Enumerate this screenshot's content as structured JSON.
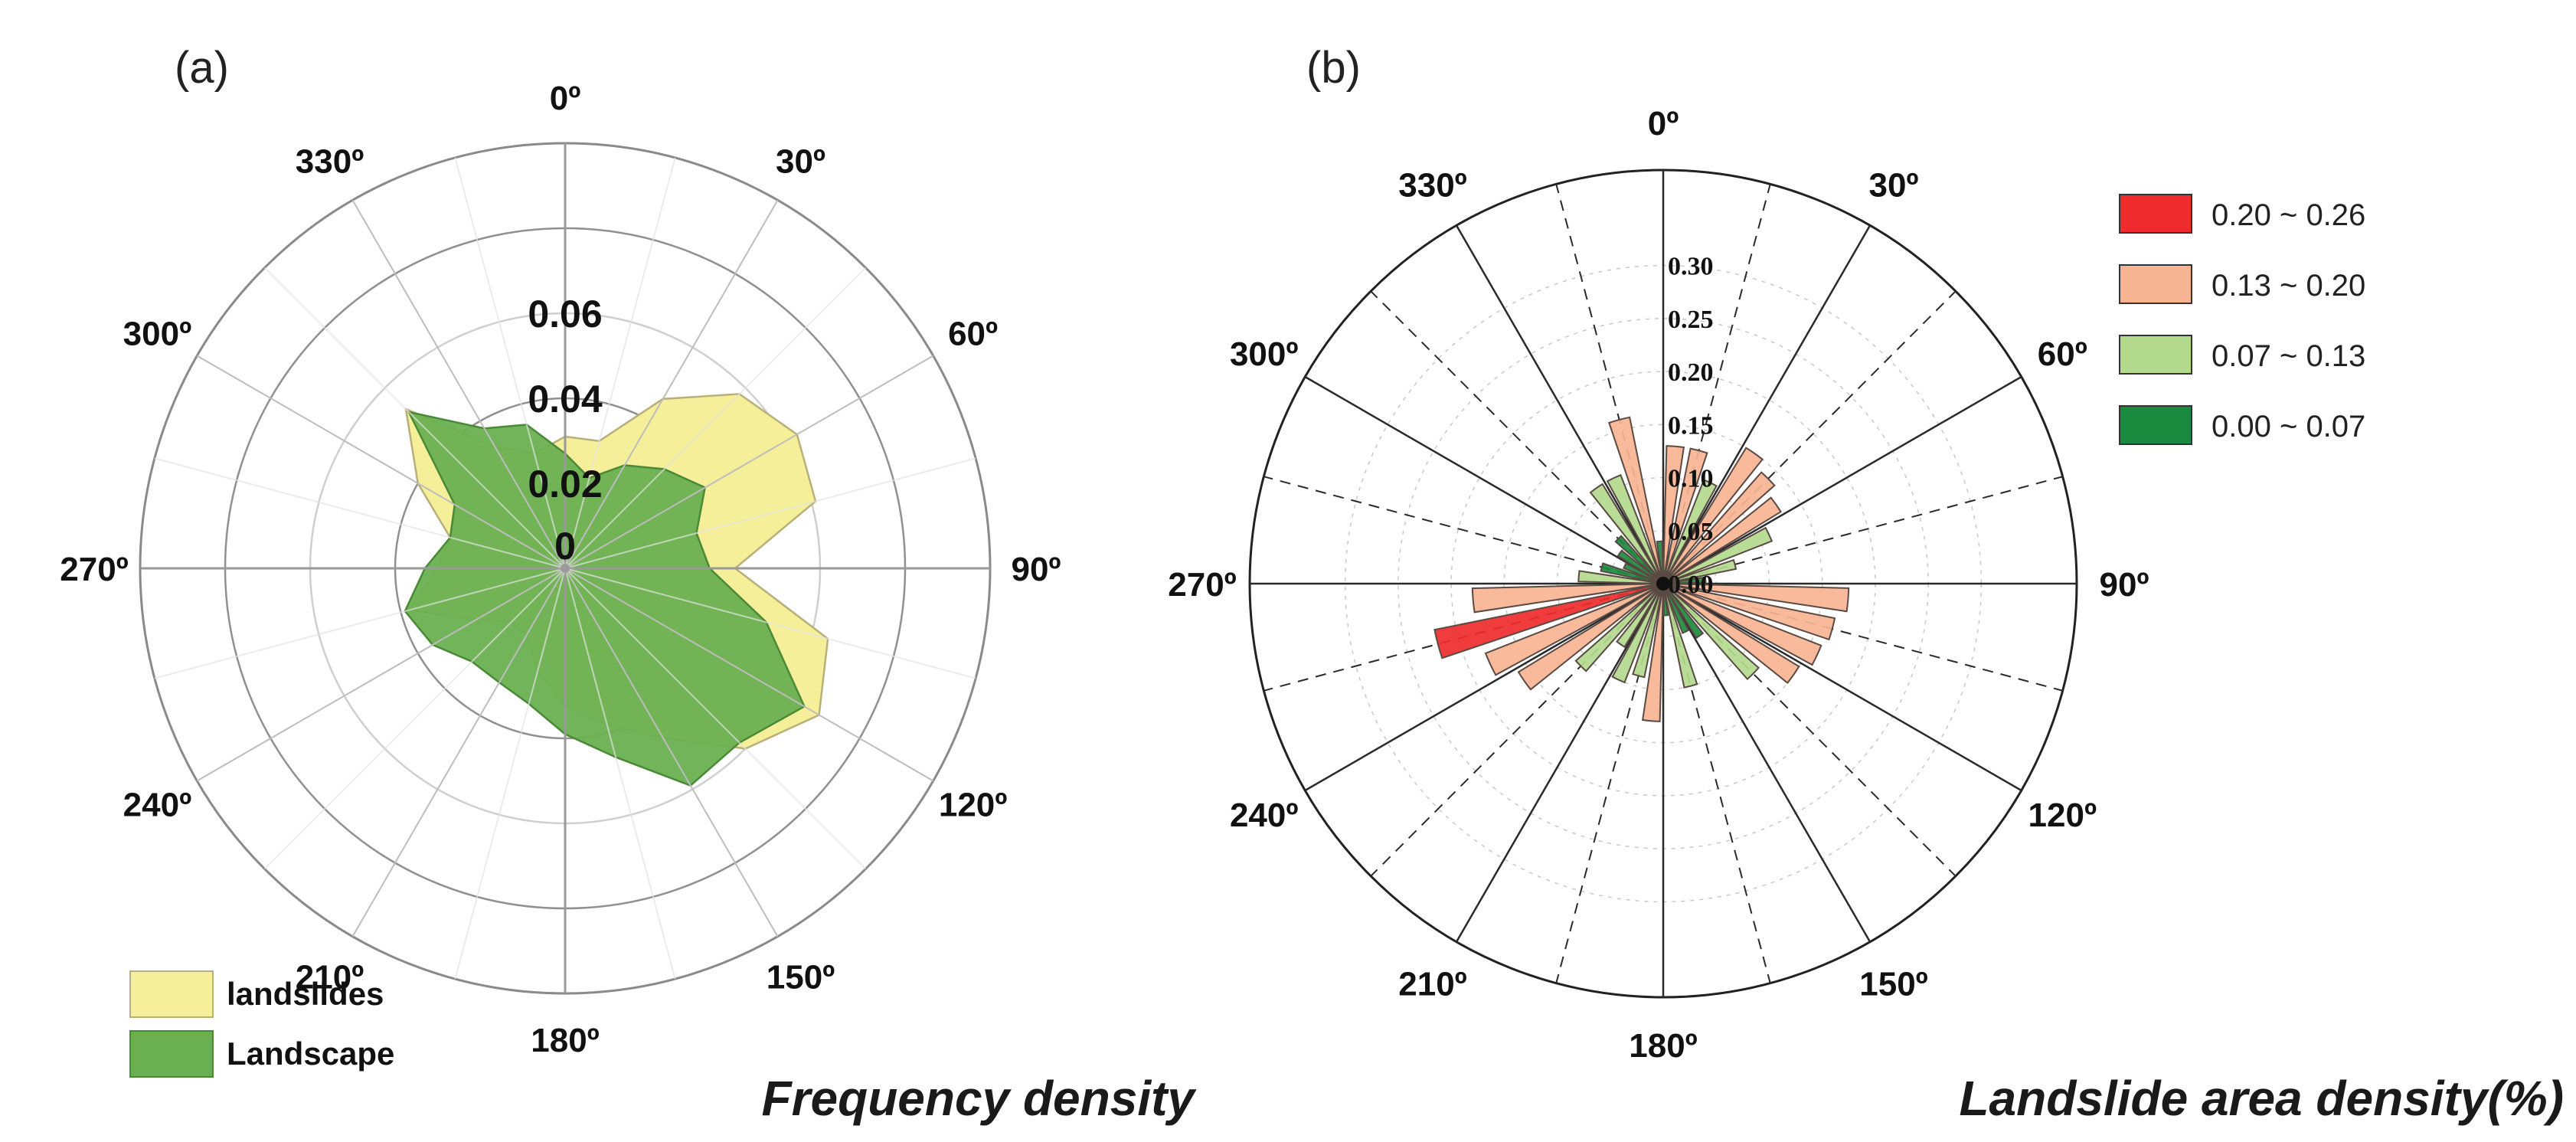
{
  "chart_data": [
    {
      "type": "radar",
      "panel_label": "(a)",
      "caption": "Frequency density",
      "directions": [
        "0º",
        "30º",
        "60º",
        "90º",
        "120º",
        "150º",
        "180º",
        "210º",
        "240º",
        "270º",
        "300º",
        "330º"
      ],
      "radial_ticks": [
        "0",
        "0.02",
        "0.04",
        "0.06"
      ],
      "rlim": [
        0,
        0.1
      ],
      "angles": [
        0,
        15,
        30,
        45,
        60,
        75,
        90,
        105,
        120,
        135,
        150,
        165,
        180,
        195,
        210,
        225,
        240,
        255,
        270,
        285,
        300,
        315,
        330,
        345
      ],
      "series": [
        {
          "name": "landslides",
          "color": "#f6ef9a",
          "stroke": "#b7b07a",
          "values": [
            0.031,
            0.031,
            0.046,
            0.058,
            0.063,
            0.061,
            0.04,
            0.064,
            0.069,
            0.06,
            0.046,
            0.038,
            0.032,
            0.025,
            0.018,
            0.018,
            0.024,
            0.038,
            0.03,
            0.028,
            0.04,
            0.053,
            0.033,
            0.028
          ]
        },
        {
          "name": "Landscape",
          "color": "#6ab051",
          "stroke": "#4a8a37",
          "values": [
            0.027,
            0.022,
            0.028,
            0.033,
            0.038,
            0.032,
            0.034,
            0.049,
            0.065,
            0.058,
            0.059,
            0.046,
            0.039,
            0.033,
            0.031,
            0.031,
            0.036,
            0.039,
            0.033,
            0.028,
            0.03,
            0.052,
            0.038,
            0.035
          ]
        }
      ]
    },
    {
      "type": "polar_bar",
      "panel_label": "(b)",
      "caption": "Landslide area density(%)",
      "directions": [
        "0º",
        "30º",
        "60º",
        "90º",
        "120º",
        "150º",
        "180º",
        "210º",
        "240º",
        "270º",
        "300º",
        "330º"
      ],
      "radial_ticks": [
        "0.00",
        "0.05",
        "0.10",
        "0.15",
        "0.20",
        "0.25",
        "0.30"
      ],
      "rlim": [
        0,
        0.39
      ],
      "bin_width_deg": 10,
      "angles": [
        5,
        15,
        25,
        35,
        45,
        55,
        65,
        75,
        85,
        95,
        105,
        115,
        125,
        135,
        145,
        155,
        165,
        175,
        185,
        195,
        205,
        215,
        225,
        235,
        245,
        255,
        265,
        275,
        285,
        295,
        305,
        315,
        325,
        335,
        345,
        355
      ],
      "values": [
        0.13,
        0.13,
        0.105,
        0.15,
        0.14,
        0.13,
        0.11,
        0.07,
        0.04,
        0.175,
        0.165,
        0.16,
        0.15,
        0.12,
        0.06,
        0.05,
        0.1,
        0.03,
        0.13,
        0.09,
        0.1,
        0.07,
        0.11,
        0.16,
        0.18,
        0.22,
        0.18,
        0.08,
        0.06,
        0.04,
        0.05,
        0.06,
        0.11,
        0.11,
        0.16,
        0.04
      ],
      "legend": [
        {
          "label": "0.20 ~ 0.26",
          "color": "#ef2b2d"
        },
        {
          "label": "0.13 ~ 0.20",
          "color": "#f7b493"
        },
        {
          "label": "0.07 ~ 0.13",
          "color": "#b3d98d"
        },
        {
          "label": "0.00 ~ 0.07",
          "color": "#1a8b3e"
        }
      ]
    }
  ]
}
